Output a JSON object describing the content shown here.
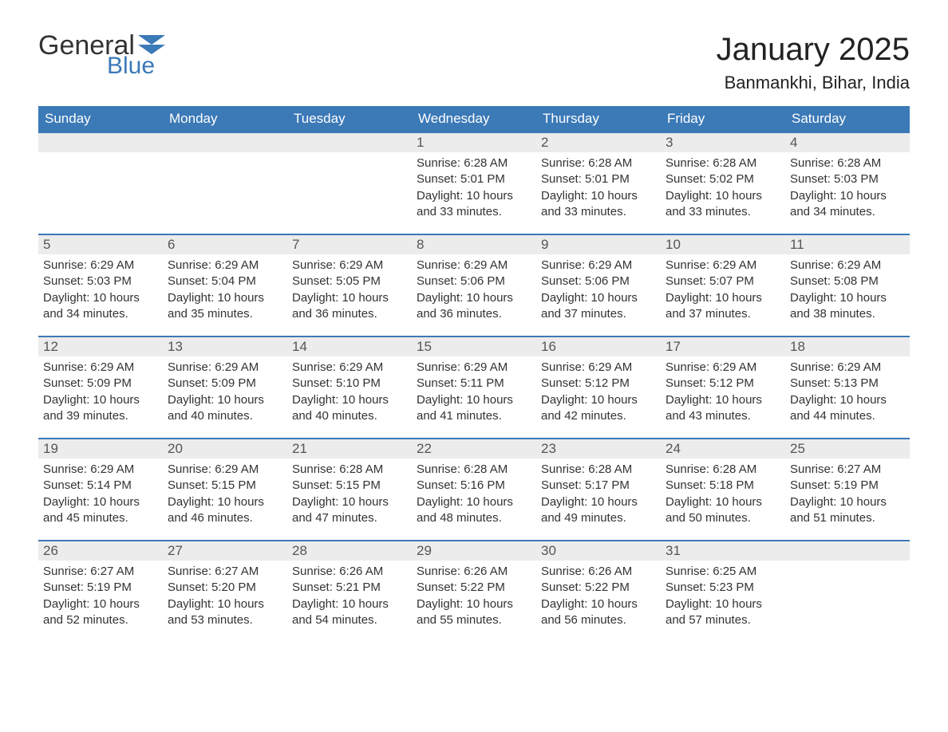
{
  "brand": {
    "general": "General",
    "blue": "Blue"
  },
  "title": "January 2025",
  "location": "Banmankhi, Bihar, India",
  "colors": {
    "header_bg": "#3b79b7",
    "header_text": "#ffffff",
    "daynum_bg": "#ececec",
    "body_text": "#333333",
    "week_border": "#3b79b7"
  },
  "fonts": {
    "title_size": 40,
    "location_size": 22,
    "weekday_size": 17,
    "body_size": 15
  },
  "weekdays": [
    "Sunday",
    "Monday",
    "Tuesday",
    "Wednesday",
    "Thursday",
    "Friday",
    "Saturday"
  ],
  "weeks": [
    [
      {
        "n": "",
        "sunrise": "",
        "sunset": "",
        "daylight1": "",
        "daylight2": ""
      },
      {
        "n": "",
        "sunrise": "",
        "sunset": "",
        "daylight1": "",
        "daylight2": ""
      },
      {
        "n": "",
        "sunrise": "",
        "sunset": "",
        "daylight1": "",
        "daylight2": ""
      },
      {
        "n": "1",
        "sunrise": "Sunrise: 6:28 AM",
        "sunset": "Sunset: 5:01 PM",
        "daylight1": "Daylight: 10 hours",
        "daylight2": "and 33 minutes."
      },
      {
        "n": "2",
        "sunrise": "Sunrise: 6:28 AM",
        "sunset": "Sunset: 5:01 PM",
        "daylight1": "Daylight: 10 hours",
        "daylight2": "and 33 minutes."
      },
      {
        "n": "3",
        "sunrise": "Sunrise: 6:28 AM",
        "sunset": "Sunset: 5:02 PM",
        "daylight1": "Daylight: 10 hours",
        "daylight2": "and 33 minutes."
      },
      {
        "n": "4",
        "sunrise": "Sunrise: 6:28 AM",
        "sunset": "Sunset: 5:03 PM",
        "daylight1": "Daylight: 10 hours",
        "daylight2": "and 34 minutes."
      }
    ],
    [
      {
        "n": "5",
        "sunrise": "Sunrise: 6:29 AM",
        "sunset": "Sunset: 5:03 PM",
        "daylight1": "Daylight: 10 hours",
        "daylight2": "and 34 minutes."
      },
      {
        "n": "6",
        "sunrise": "Sunrise: 6:29 AM",
        "sunset": "Sunset: 5:04 PM",
        "daylight1": "Daylight: 10 hours",
        "daylight2": "and 35 minutes."
      },
      {
        "n": "7",
        "sunrise": "Sunrise: 6:29 AM",
        "sunset": "Sunset: 5:05 PM",
        "daylight1": "Daylight: 10 hours",
        "daylight2": "and 36 minutes."
      },
      {
        "n": "8",
        "sunrise": "Sunrise: 6:29 AM",
        "sunset": "Sunset: 5:06 PM",
        "daylight1": "Daylight: 10 hours",
        "daylight2": "and 36 minutes."
      },
      {
        "n": "9",
        "sunrise": "Sunrise: 6:29 AM",
        "sunset": "Sunset: 5:06 PM",
        "daylight1": "Daylight: 10 hours",
        "daylight2": "and 37 minutes."
      },
      {
        "n": "10",
        "sunrise": "Sunrise: 6:29 AM",
        "sunset": "Sunset: 5:07 PM",
        "daylight1": "Daylight: 10 hours",
        "daylight2": "and 37 minutes."
      },
      {
        "n": "11",
        "sunrise": "Sunrise: 6:29 AM",
        "sunset": "Sunset: 5:08 PM",
        "daylight1": "Daylight: 10 hours",
        "daylight2": "and 38 minutes."
      }
    ],
    [
      {
        "n": "12",
        "sunrise": "Sunrise: 6:29 AM",
        "sunset": "Sunset: 5:09 PM",
        "daylight1": "Daylight: 10 hours",
        "daylight2": "and 39 minutes."
      },
      {
        "n": "13",
        "sunrise": "Sunrise: 6:29 AM",
        "sunset": "Sunset: 5:09 PM",
        "daylight1": "Daylight: 10 hours",
        "daylight2": "and 40 minutes."
      },
      {
        "n": "14",
        "sunrise": "Sunrise: 6:29 AM",
        "sunset": "Sunset: 5:10 PM",
        "daylight1": "Daylight: 10 hours",
        "daylight2": "and 40 minutes."
      },
      {
        "n": "15",
        "sunrise": "Sunrise: 6:29 AM",
        "sunset": "Sunset: 5:11 PM",
        "daylight1": "Daylight: 10 hours",
        "daylight2": "and 41 minutes."
      },
      {
        "n": "16",
        "sunrise": "Sunrise: 6:29 AM",
        "sunset": "Sunset: 5:12 PM",
        "daylight1": "Daylight: 10 hours",
        "daylight2": "and 42 minutes."
      },
      {
        "n": "17",
        "sunrise": "Sunrise: 6:29 AM",
        "sunset": "Sunset: 5:12 PM",
        "daylight1": "Daylight: 10 hours",
        "daylight2": "and 43 minutes."
      },
      {
        "n": "18",
        "sunrise": "Sunrise: 6:29 AM",
        "sunset": "Sunset: 5:13 PM",
        "daylight1": "Daylight: 10 hours",
        "daylight2": "and 44 minutes."
      }
    ],
    [
      {
        "n": "19",
        "sunrise": "Sunrise: 6:29 AM",
        "sunset": "Sunset: 5:14 PM",
        "daylight1": "Daylight: 10 hours",
        "daylight2": "and 45 minutes."
      },
      {
        "n": "20",
        "sunrise": "Sunrise: 6:29 AM",
        "sunset": "Sunset: 5:15 PM",
        "daylight1": "Daylight: 10 hours",
        "daylight2": "and 46 minutes."
      },
      {
        "n": "21",
        "sunrise": "Sunrise: 6:28 AM",
        "sunset": "Sunset: 5:15 PM",
        "daylight1": "Daylight: 10 hours",
        "daylight2": "and 47 minutes."
      },
      {
        "n": "22",
        "sunrise": "Sunrise: 6:28 AM",
        "sunset": "Sunset: 5:16 PM",
        "daylight1": "Daylight: 10 hours",
        "daylight2": "and 48 minutes."
      },
      {
        "n": "23",
        "sunrise": "Sunrise: 6:28 AM",
        "sunset": "Sunset: 5:17 PM",
        "daylight1": "Daylight: 10 hours",
        "daylight2": "and 49 minutes."
      },
      {
        "n": "24",
        "sunrise": "Sunrise: 6:28 AM",
        "sunset": "Sunset: 5:18 PM",
        "daylight1": "Daylight: 10 hours",
        "daylight2": "and 50 minutes."
      },
      {
        "n": "25",
        "sunrise": "Sunrise: 6:27 AM",
        "sunset": "Sunset: 5:19 PM",
        "daylight1": "Daylight: 10 hours",
        "daylight2": "and 51 minutes."
      }
    ],
    [
      {
        "n": "26",
        "sunrise": "Sunrise: 6:27 AM",
        "sunset": "Sunset: 5:19 PM",
        "daylight1": "Daylight: 10 hours",
        "daylight2": "and 52 minutes."
      },
      {
        "n": "27",
        "sunrise": "Sunrise: 6:27 AM",
        "sunset": "Sunset: 5:20 PM",
        "daylight1": "Daylight: 10 hours",
        "daylight2": "and 53 minutes."
      },
      {
        "n": "28",
        "sunrise": "Sunrise: 6:26 AM",
        "sunset": "Sunset: 5:21 PM",
        "daylight1": "Daylight: 10 hours",
        "daylight2": "and 54 minutes."
      },
      {
        "n": "29",
        "sunrise": "Sunrise: 6:26 AM",
        "sunset": "Sunset: 5:22 PM",
        "daylight1": "Daylight: 10 hours",
        "daylight2": "and 55 minutes."
      },
      {
        "n": "30",
        "sunrise": "Sunrise: 6:26 AM",
        "sunset": "Sunset: 5:22 PM",
        "daylight1": "Daylight: 10 hours",
        "daylight2": "and 56 minutes."
      },
      {
        "n": "31",
        "sunrise": "Sunrise: 6:25 AM",
        "sunset": "Sunset: 5:23 PM",
        "daylight1": "Daylight: 10 hours",
        "daylight2": "and 57 minutes."
      },
      {
        "n": "",
        "sunrise": "",
        "sunset": "",
        "daylight1": "",
        "daylight2": ""
      }
    ]
  ]
}
